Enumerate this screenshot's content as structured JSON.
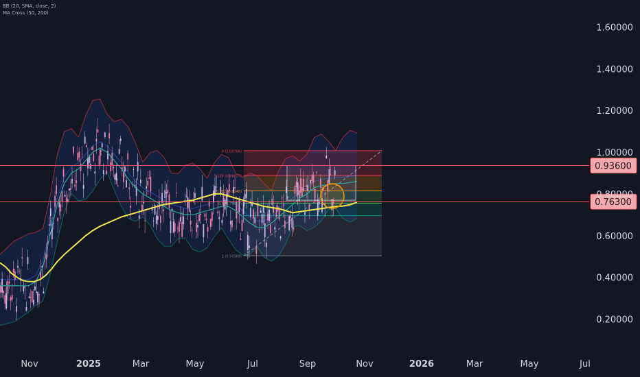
{
  "legend": {
    "bb": "BB (20, SMA, close, 2)",
    "ma": "MA Cross (50, 200)"
  },
  "colors": {
    "background": "#131722",
    "axis_text": "#d1d4dc",
    "hline": "#f7525f",
    "price_label_bg": "#f7a8ad",
    "price_label_text": "#131722",
    "ma200": "#f2e94e",
    "ma50": "#26a69a",
    "bb_fill": "#2962ff",
    "bb_band": "#f23645",
    "candle_up": "#c7b3e6",
    "candle_down": "#e879a8"
  },
  "chart_data": {
    "type": "candlestick",
    "y_ticks": [
      "1.60000",
      "1.40000",
      "1.20000",
      "1.00000",
      "0.80000",
      "0.60000",
      "0.40000",
      "0.20000"
    ],
    "y_tick_values": [
      1.6,
      1.4,
      1.2,
      1.0,
      0.8,
      0.6,
      0.4,
      0.2
    ],
    "ylim": [
      0.12,
      1.68
    ],
    "x_ticks": [
      "Nov",
      "2025",
      "Mar",
      "May",
      "Jul",
      "Sep",
      "Nov",
      "2026",
      "Mar",
      "May",
      "Jul"
    ],
    "x_tick_bold": [
      false,
      true,
      false,
      false,
      false,
      false,
      false,
      true,
      false,
      false,
      false
    ],
    "horizontal_lines": [
      {
        "value": 0.936,
        "label": "0.93600"
      },
      {
        "value": 0.763,
        "label": "0.76300"
      }
    ],
    "fibonacci": {
      "levels": [
        {
          "ratio": "0",
          "price": 1.00706,
          "label": "0 (1.00706)",
          "color": "#f23645"
        },
        {
          "ratio": "0.236",
          "price": 0.88827,
          "label": "0.236 (0.88827)",
          "color": "#f23645"
        },
        {
          "ratio": "0.382",
          "price": 0.8148,
          "label": "0.382 (0.8148)",
          "color": "#ff9800"
        },
        {
          "ratio": "0.5",
          "price": 0.75537,
          "label": "0.5 (0.75537)",
          "color": "#4caf50"
        },
        {
          "ratio": "0.618",
          "price": 0.69594,
          "label": "",
          "color": "#089981"
        },
        {
          "ratio": "1",
          "price": 0.50368,
          "label": "1 (0.50368)",
          "color": "#787b86"
        }
      ]
    },
    "series": [
      {
        "name": "MA 200",
        "type": "line",
        "points": [
          [
            0,
            0.47
          ],
          [
            8,
            0.45
          ],
          [
            16,
            0.42
          ],
          [
            24,
            0.4
          ],
          [
            32,
            0.385
          ],
          [
            40,
            0.38
          ],
          [
            48,
            0.38
          ],
          [
            56,
            0.39
          ],
          [
            64,
            0.41
          ],
          [
            72,
            0.44
          ],
          [
            80,
            0.475
          ],
          [
            90,
            0.51
          ],
          [
            100,
            0.54
          ],
          [
            110,
            0.57
          ],
          [
            120,
            0.6
          ],
          [
            130,
            0.625
          ],
          [
            140,
            0.645
          ],
          [
            150,
            0.66
          ],
          [
            160,
            0.675
          ],
          [
            170,
            0.69
          ],
          [
            180,
            0.7
          ],
          [
            190,
            0.71
          ],
          [
            200,
            0.72
          ],
          [
            210,
            0.73
          ],
          [
            220,
            0.74
          ],
          [
            230,
            0.75
          ],
          [
            240,
            0.755
          ],
          [
            250,
            0.76
          ],
          [
            260,
            0.765
          ],
          [
            270,
            0.77
          ],
          [
            280,
            0.78
          ],
          [
            290,
            0.79
          ],
          [
            300,
            0.8
          ],
          [
            310,
            0.8
          ],
          [
            320,
            0.79
          ],
          [
            330,
            0.78
          ],
          [
            340,
            0.77
          ],
          [
            350,
            0.76
          ],
          [
            360,
            0.75
          ],
          [
            370,
            0.74
          ],
          [
            380,
            0.735
          ],
          [
            390,
            0.73
          ],
          [
            400,
            0.72
          ],
          [
            410,
            0.71
          ],
          [
            420,
            0.715
          ],
          [
            430,
            0.72
          ],
          [
            440,
            0.725
          ],
          [
            450,
            0.73
          ],
          [
            460,
            0.735
          ],
          [
            470,
            0.74
          ],
          [
            480,
            0.742
          ],
          [
            490,
            0.748
          ],
          [
            500,
            0.76
          ]
        ]
      },
      {
        "name": "MA 50",
        "type": "line",
        "points": [
          [
            0,
            0.36
          ],
          [
            20,
            0.36
          ],
          [
            40,
            0.36
          ],
          [
            50,
            0.38
          ],
          [
            60,
            0.45
          ],
          [
            70,
            0.6
          ],
          [
            80,
            0.75
          ],
          [
            90,
            0.85
          ],
          [
            100,
            0.9
          ],
          [
            110,
            0.92
          ],
          [
            120,
            0.96
          ],
          [
            130,
            1.0
          ],
          [
            140,
            1.02
          ],
          [
            150,
            1.0
          ],
          [
            160,
            0.96
          ],
          [
            170,
            0.92
          ],
          [
            180,
            0.87
          ],
          [
            190,
            0.83
          ],
          [
            200,
            0.8
          ],
          [
            210,
            0.78
          ],
          [
            220,
            0.76
          ],
          [
            230,
            0.74
          ],
          [
            240,
            0.72
          ],
          [
            250,
            0.71
          ],
          [
            260,
            0.7
          ],
          [
            270,
            0.7
          ],
          [
            280,
            0.71
          ],
          [
            290,
            0.72
          ],
          [
            300,
            0.73
          ],
          [
            310,
            0.74
          ],
          [
            320,
            0.74
          ],
          [
            330,
            0.72
          ],
          [
            340,
            0.69
          ],
          [
            350,
            0.66
          ],
          [
            360,
            0.64
          ],
          [
            370,
            0.64
          ],
          [
            380,
            0.66
          ],
          [
            390,
            0.69
          ],
          [
            400,
            0.72
          ],
          [
            410,
            0.75
          ],
          [
            420,
            0.78
          ],
          [
            430,
            0.8
          ],
          [
            440,
            0.83
          ],
          [
            450,
            0.84
          ],
          [
            460,
            0.845
          ],
          [
            470,
            0.85
          ],
          [
            480,
            0.85
          ],
          [
            490,
            0.855
          ],
          [
            500,
            0.86
          ]
        ]
      }
    ]
  }
}
